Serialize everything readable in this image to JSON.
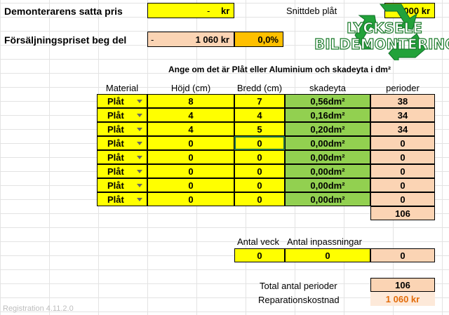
{
  "sheet": {
    "demont_label": "Demonterarens satta pris",
    "demont_value": "-",
    "demont_unit": "kr",
    "snittdeb_label": "Snittdeb plåt",
    "snittdeb_value": "000 kr",
    "forsalj_label": "Försäljningspriset beg del",
    "forsalj_dash": "-",
    "forsalj_value": "1 060 kr",
    "forsalj_percent": "0,0%",
    "instruction": "Ange om det är Plåt eller Aluminium och skadeyta i dm²"
  },
  "logo": {
    "line1": "LYCKSELE",
    "line2": "BILDEMONTERING"
  },
  "table": {
    "headers": {
      "material": "Material",
      "hojd": "Höjd (cm)",
      "bredd": "Bredd (cm)",
      "skadeyta": "skadeyta",
      "perioder": "perioder"
    },
    "rows": [
      {
        "material": "Plåt",
        "hojd": "8",
        "bredd": "7",
        "skadeyta": "0,56dm²",
        "perioder": "38"
      },
      {
        "material": "Plåt",
        "hojd": "4",
        "bredd": "4",
        "skadeyta": "0,16dm²",
        "perioder": "34"
      },
      {
        "material": "Plåt",
        "hojd": "4",
        "bredd": "5",
        "skadeyta": "0,20dm²",
        "perioder": "34"
      },
      {
        "material": "Plåt",
        "hojd": "0",
        "bredd": "0",
        "skadeyta": "0,00dm²",
        "perioder": "0"
      },
      {
        "material": "Plåt",
        "hojd": "0",
        "bredd": "0",
        "skadeyta": "0,00dm²",
        "perioder": "0"
      },
      {
        "material": "Plåt",
        "hojd": "0",
        "bredd": "0",
        "skadeyta": "0,00dm²",
        "perioder": "0"
      },
      {
        "material": "Plåt",
        "hojd": "0",
        "bredd": "0",
        "skadeyta": "0,00dm²",
        "perioder": "0"
      },
      {
        "material": "Plåt",
        "hojd": "0",
        "bredd": "0",
        "skadeyta": "0,00dm²",
        "perioder": "0"
      }
    ],
    "perioder_sum": "106"
  },
  "extra": {
    "antal_veck_label": "Antal veck",
    "antal_inpass_label": "Antal inpassningar",
    "antal_veck": "0",
    "antal_inpass": "0",
    "extra_perioder": "0"
  },
  "totals": {
    "total_label": "Total antal perioder",
    "total_value": "106",
    "rep_label": "Reparationskostnad",
    "rep_value": "1 060 kr"
  },
  "footer": {
    "registration": "Registration 4.11.2.0"
  }
}
